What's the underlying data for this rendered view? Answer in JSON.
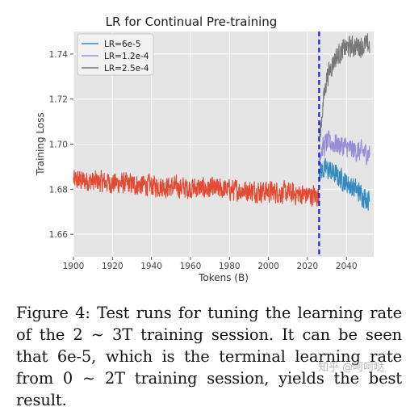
{
  "chart_data": {
    "type": "line",
    "title": "LR for Continual Pre-training",
    "xlabel": "Tokens (B)",
    "ylabel": "Training Loss",
    "xlim": [
      1900,
      2054
    ],
    "ylim": [
      1.65,
      1.75
    ],
    "x_ticks": [
      "1900",
      "1920",
      "1940",
      "1960",
      "1980",
      "2000",
      "2020",
      "2040"
    ],
    "y_ticks": [
      "1.66",
      "1.68",
      "1.70",
      "1.72",
      "1.74"
    ],
    "grid": true,
    "legend_position": "top-left",
    "vline_x": 2026,
    "vline_color": "#1f1fd6",
    "series": [
      {
        "name": "",
        "color": "#e24a33",
        "x_range": [
          1900,
          2026
        ],
        "points": [
          [
            1900,
            1.684
          ],
          [
            1950,
            1.681
          ],
          [
            2000,
            1.679
          ],
          [
            2026,
            1.677
          ]
        ]
      },
      {
        "name": "LR=6e-5",
        "color": "#348abd",
        "x_range": [
          2026,
          2052
        ],
        "points": [
          [
            2026,
            1.688
          ],
          [
            2030,
            1.689
          ],
          [
            2040,
            1.683
          ],
          [
            2052,
            1.675
          ]
        ]
      },
      {
        "name": "LR=1.2e-4",
        "color": "#988ed5",
        "x_range": [
          2026,
          2052
        ],
        "points": [
          [
            2026,
            1.696
          ],
          [
            2030,
            1.701
          ],
          [
            2035,
            1.7
          ],
          [
            2045,
            1.697
          ],
          [
            2052,
            1.696
          ]
        ]
      },
      {
        "name": "LR=2.5e-4",
        "color": "#777777",
        "x_range": [
          2026,
          2052
        ],
        "points": [
          [
            2026,
            1.7
          ],
          [
            2028,
            1.718
          ],
          [
            2030,
            1.73
          ],
          [
            2034,
            1.738
          ],
          [
            2040,
            1.743
          ],
          [
            2052,
            1.744
          ]
        ]
      }
    ]
  },
  "caption": "Figure 4: Test runs for tuning the learning rate of the 2 ∼ 3T training session. It can be seen that 6e-5, which is the terminal learning rate from 0 ∼ 2T training session, yields the best result.",
  "watermark": "知乎 @呵呵哒"
}
